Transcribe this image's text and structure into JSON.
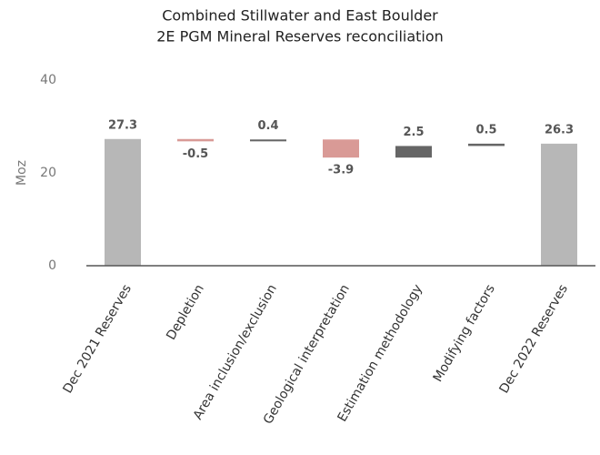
{
  "chart_data": {
    "type": "waterfall",
    "title": "Combined Stillwater and East Boulder",
    "subtitle": "2E PGM Mineral Reserves reconciliation",
    "y_label": "Moz",
    "categories": [
      "Dec 2021 Reserves",
      "Depletion",
      "Area inclusion/exclusion",
      "Geological interpretation",
      "Estimation methodology",
      "Modifying factors",
      "Dec 2022 Reserves"
    ],
    "values": [
      27.3,
      -0.5,
      0.4,
      -3.9,
      2.5,
      0.5,
      26.3
    ],
    "measure": [
      "total",
      "relative",
      "relative",
      "relative",
      "relative",
      "relative",
      "total"
    ],
    "colors": {
      "total": "#b7b7b7",
      "increase": "#666666",
      "decrease": "#d99a96"
    },
    "ylim": [
      0,
      40
    ],
    "yticks": [
      0,
      20,
      40
    ],
    "grid": false
  }
}
